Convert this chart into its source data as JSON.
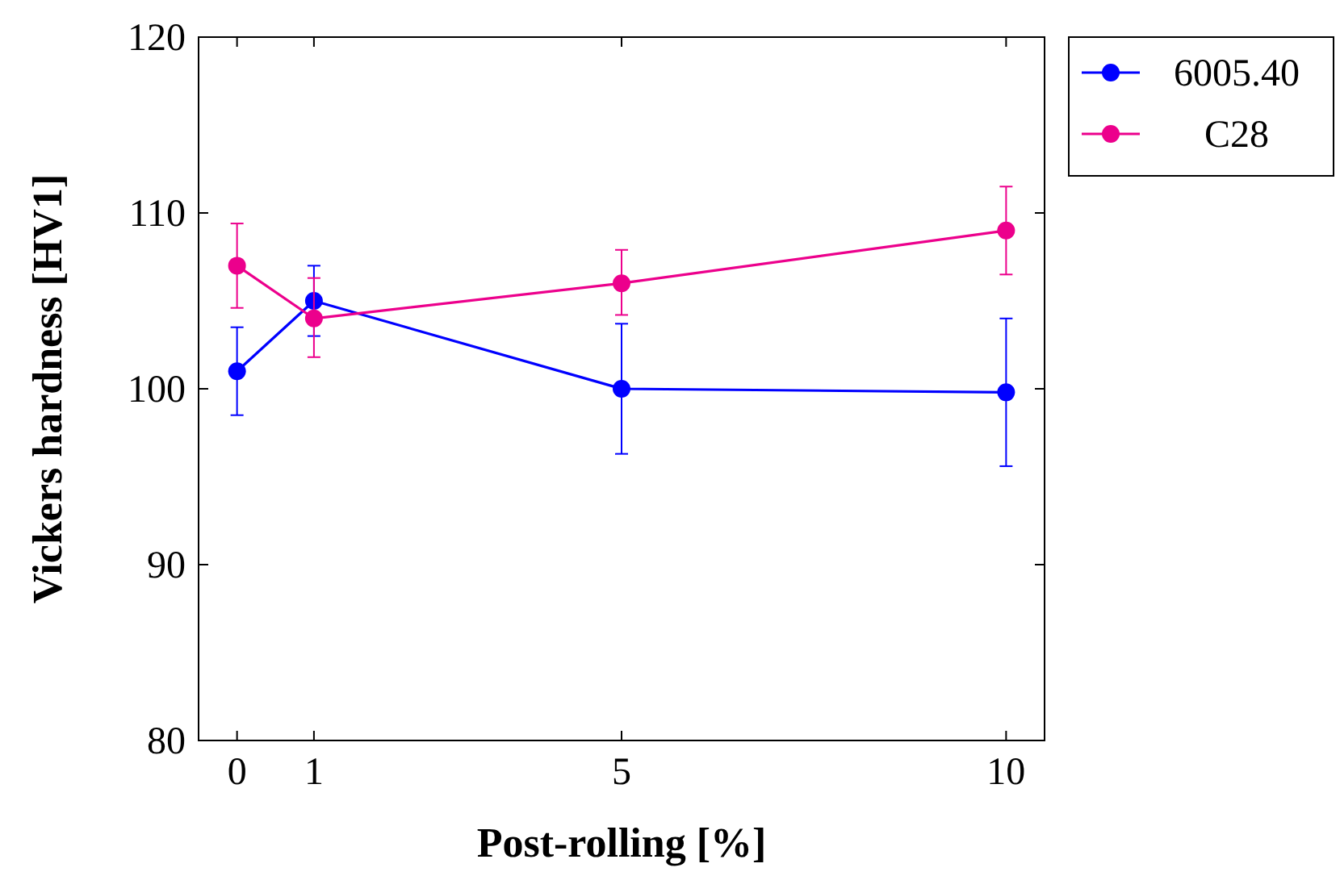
{
  "chart_data": {
    "type": "line",
    "xlabel": "Post-rolling [%]",
    "ylabel": "Vickers hardness [HV1]",
    "x": [
      0,
      1,
      5,
      10
    ],
    "xlim": [
      -0.5,
      10.5
    ],
    "xticks": [
      0,
      1,
      5,
      10
    ],
    "ylim": [
      80,
      120
    ],
    "yticks": [
      80,
      90,
      100,
      110,
      120
    ],
    "grid": false,
    "legend": "top right",
    "marker": "circle",
    "line_style": "solid",
    "series": [
      {
        "name": "6005.40",
        "color": "#0000ff",
        "values": [
          101,
          105,
          100,
          99.8
        ],
        "errors": [
          [
            98.5,
            103.5
          ],
          [
            103,
            107
          ],
          [
            96.3,
            103.7
          ],
          [
            95.6,
            104
          ]
        ]
      },
      {
        "name": "C28",
        "color": "#ec008c",
        "values": [
          107,
          104,
          106,
          109
        ],
        "errors": [
          [
            104.6,
            109.4
          ],
          [
            101.8,
            106.3
          ],
          [
            104.2,
            107.9
          ],
          [
            106.5,
            111.5
          ]
        ]
      }
    ]
  }
}
